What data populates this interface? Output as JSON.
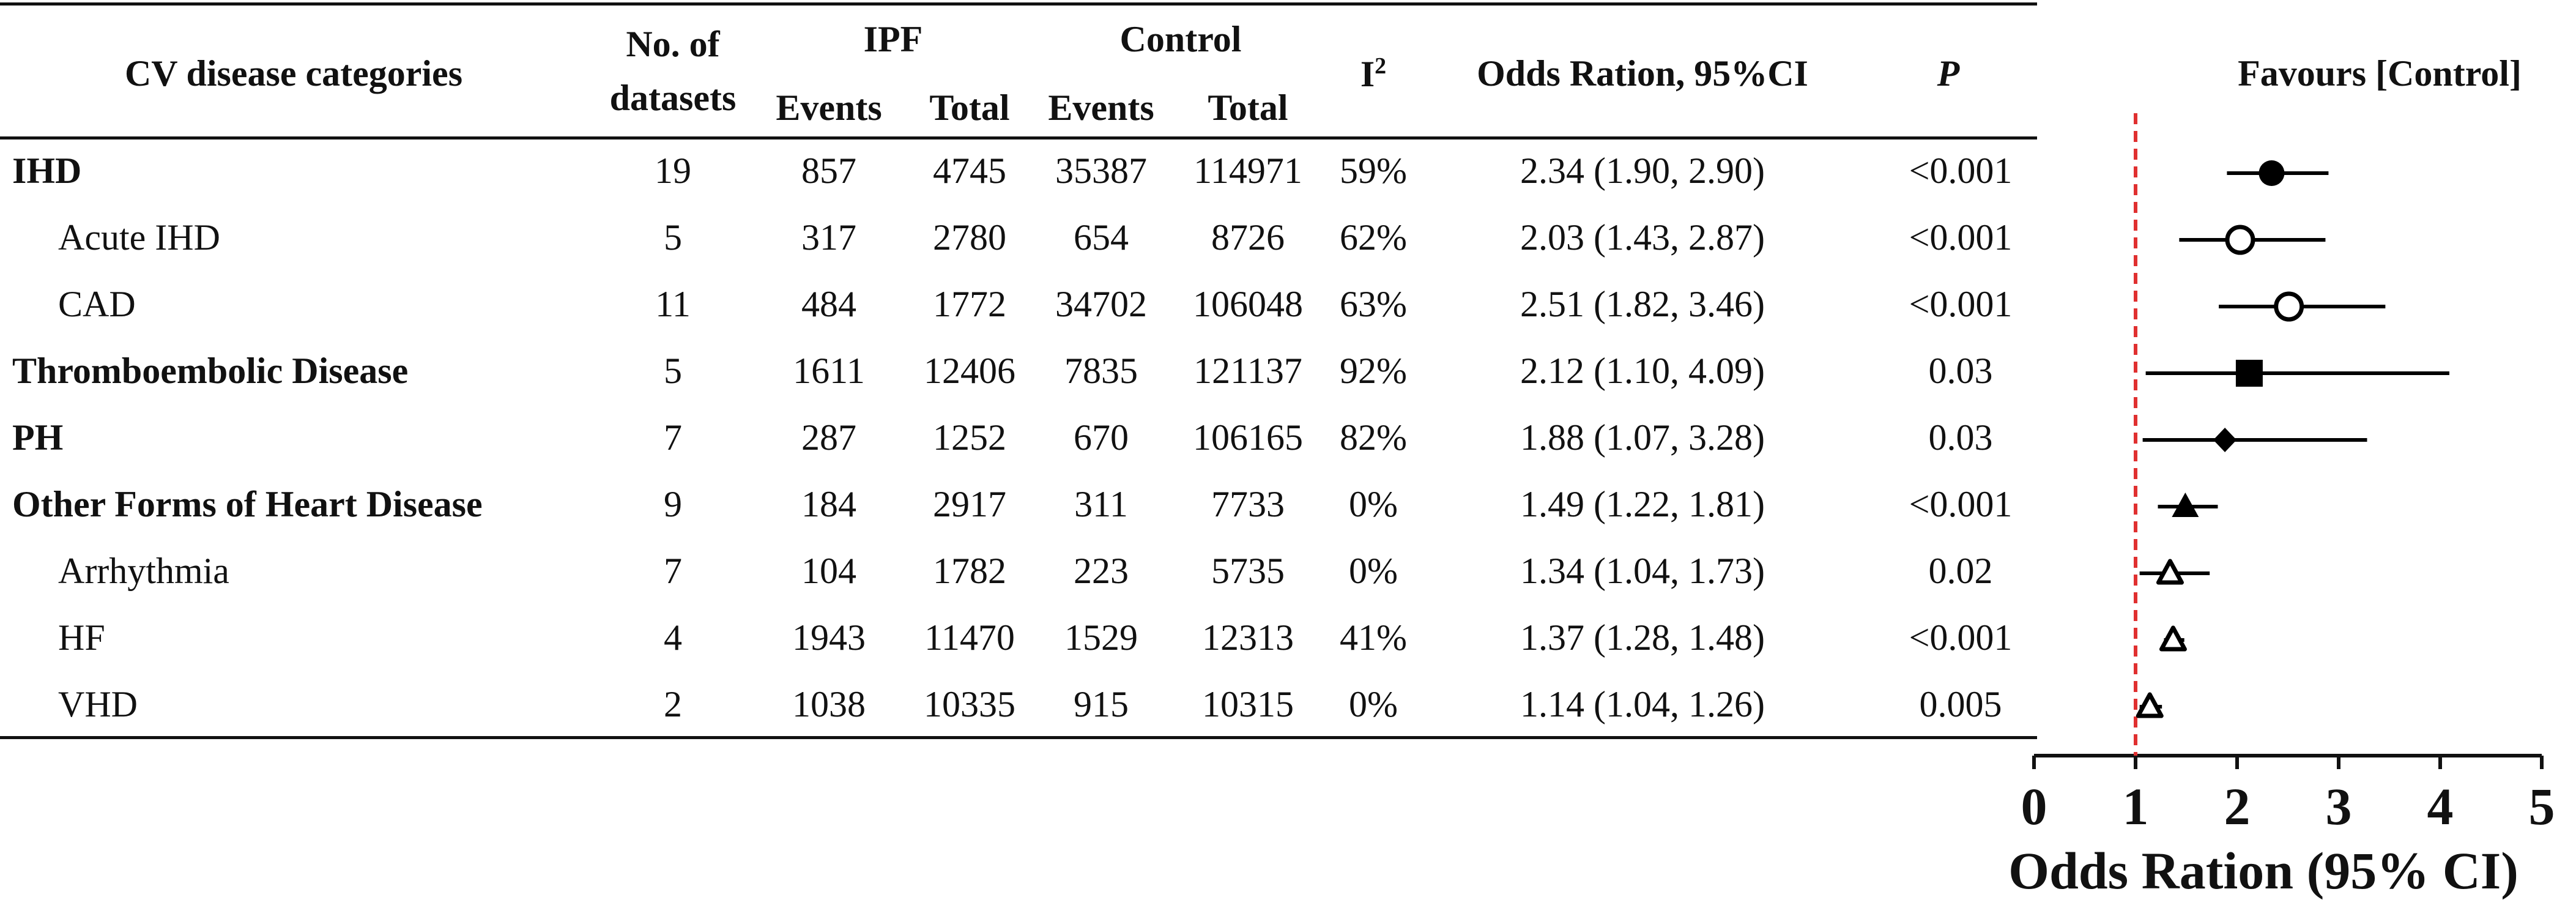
{
  "header": {
    "category": "CV disease categories",
    "datasets_line1": "No. of",
    "datasets_line2": "datasets",
    "ipf": "IPF",
    "control": "Control",
    "events": "Events",
    "total": "Total",
    "i2": "I",
    "i2_sup": "2",
    "or_ci": "Odds Ration, 95%CI",
    "p": "P",
    "favours": "Favours [Control]"
  },
  "rows": [
    {
      "label": "IHD",
      "bold": true,
      "indent": false,
      "datasets": "19",
      "ipf_events": "857",
      "ipf_total": "4745",
      "ctrl_events": "35387",
      "ctrl_total": "114971",
      "i2": "59%",
      "or_text": "2.34 (1.90, 2.90)",
      "p": "<0.001"
    },
    {
      "label": "Acute IHD",
      "bold": false,
      "indent": true,
      "datasets": "5",
      "ipf_events": "317",
      "ipf_total": "2780",
      "ctrl_events": "654",
      "ctrl_total": "8726",
      "i2": "62%",
      "or_text": "2.03 (1.43, 2.87)",
      "p": "<0.001"
    },
    {
      "label": "CAD",
      "bold": false,
      "indent": true,
      "datasets": "11",
      "ipf_events": "484",
      "ipf_total": "1772",
      "ctrl_events": "34702",
      "ctrl_total": "106048",
      "i2": "63%",
      "or_text": "2.51 (1.82, 3.46)",
      "p": "<0.001"
    },
    {
      "label": "Thromboembolic Disease",
      "bold": true,
      "indent": false,
      "datasets": "5",
      "ipf_events": "1611",
      "ipf_total": "12406",
      "ctrl_events": "7835",
      "ctrl_total": "121137",
      "i2": "92%",
      "or_text": "2.12 (1.10, 4.09)",
      "p": "0.03"
    },
    {
      "label": "PH",
      "bold": true,
      "indent": false,
      "datasets": "7",
      "ipf_events": "287",
      "ipf_total": "1252",
      "ctrl_events": "670",
      "ctrl_total": "106165",
      "i2": "82%",
      "or_text": "1.88 (1.07, 3.28)",
      "p": "0.03"
    },
    {
      "label": "Other Forms of Heart Disease",
      "bold": true,
      "indent": false,
      "datasets": "9",
      "ipf_events": "184",
      "ipf_total": "2917",
      "ctrl_events": "311",
      "ctrl_total": "7733",
      "i2": "0%",
      "or_text": "1.49 (1.22, 1.81)",
      "p": "<0.001"
    },
    {
      "label": "Arrhythmia",
      "bold": false,
      "indent": true,
      "datasets": "7",
      "ipf_events": "104",
      "ipf_total": "1782",
      "ctrl_events": "223",
      "ctrl_total": "5735",
      "i2": "0%",
      "or_text": "1.34 (1.04, 1.73)",
      "p": "0.02"
    },
    {
      "label": "HF",
      "bold": false,
      "indent": true,
      "datasets": "4",
      "ipf_events": "1943",
      "ipf_total": "11470",
      "ctrl_events": "1529",
      "ctrl_total": "12313",
      "i2": "41%",
      "or_text": "1.37 (1.28, 1.48)",
      "p": "<0.001"
    },
    {
      "label": "VHD",
      "bold": false,
      "indent": true,
      "datasets": "2",
      "ipf_events": "1038",
      "ipf_total": "10335",
      "ctrl_events": "915",
      "ctrl_total": "10315",
      "i2": "0%",
      "or_text": "1.14 (1.04, 1.26)",
      "p": "0.005"
    }
  ],
  "chart_data": {
    "type": "scatter",
    "subtype": "forest-plot",
    "categories": [
      "IHD",
      "Acute IHD",
      "CAD",
      "Thromboembolic Disease",
      "PH",
      "Other Forms of Heart Disease",
      "Arrhythmia",
      "HF",
      "VHD"
    ],
    "or": [
      2.34,
      2.03,
      2.51,
      2.12,
      1.88,
      1.49,
      1.34,
      1.37,
      1.14
    ],
    "ci_low": [
      1.9,
      1.43,
      1.82,
      1.1,
      1.07,
      1.22,
      1.04,
      1.28,
      1.04
    ],
    "ci_high": [
      2.9,
      2.87,
      3.46,
      4.09,
      3.28,
      1.81,
      1.73,
      1.48,
      1.26
    ],
    "markers": [
      "circle-filled",
      "circle-open",
      "circle-open",
      "square-filled",
      "diamond-filled",
      "triangle-filled",
      "triangle-open",
      "triangle-open",
      "triangle-open"
    ],
    "xlabel": "Odds Ration (95% CI)",
    "xlim": [
      0,
      5
    ],
    "xticks": [
      "0",
      "1",
      "2",
      "3",
      "4",
      "5"
    ],
    "reference_line": 1,
    "reference_color": "#e03030",
    "marker_color": "#000000",
    "header_label": "Favours [Control]"
  }
}
